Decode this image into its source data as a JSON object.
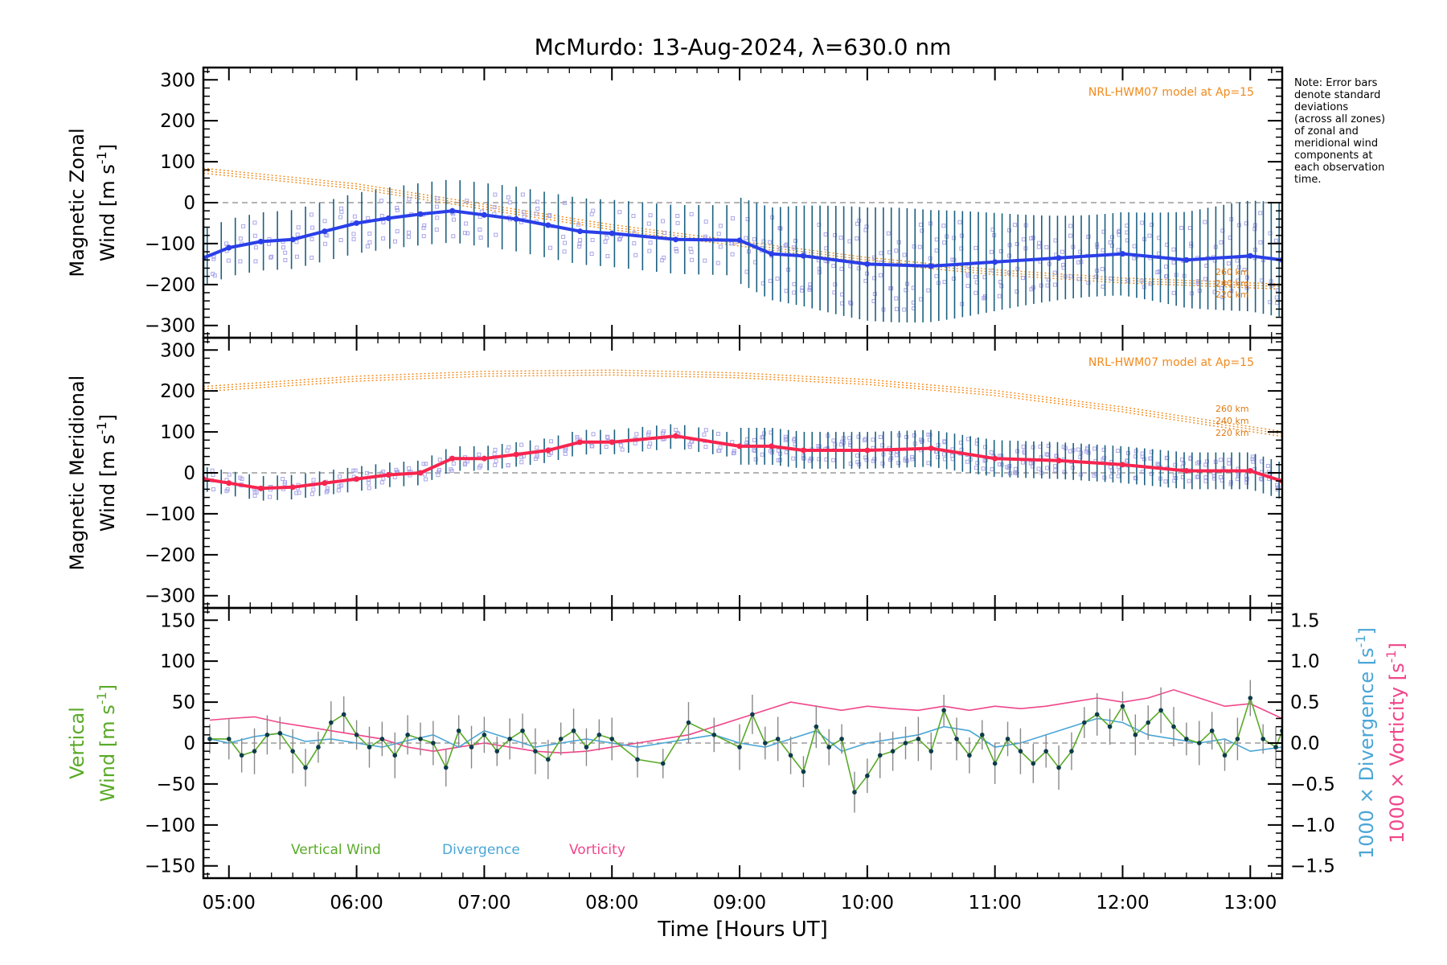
{
  "title": "McMurdo: 13-Aug-2024, λ=630.0 nm",
  "note": [
    "Note: Error bars",
    "denote standard",
    "deviations",
    "(across all zones)",
    "of zonal and",
    "meridional wind",
    "components at",
    "each observation",
    "time."
  ],
  "model_label": "NRL-HWM07 model at Ap=15",
  "altitude_labels": [
    "260 km",
    "240 km",
    "220 km"
  ],
  "xlabel": "Time [Hours UT]",
  "x_ticks": [
    "05:00",
    "06:00",
    "07:00",
    "08:00",
    "09:00",
    "10:00",
    "11:00",
    "12:00",
    "13:00"
  ],
  "colors": {
    "zonal": "#2a3fe8",
    "meridional": "#f7254f",
    "vertical": "#5aaa28",
    "divergence": "#4aa6d6",
    "vorticity": "#f0468a",
    "model": "#f08a1c",
    "error_bar": "#1c6080",
    "zone_points": "#a9a6e8"
  },
  "chart_data": [
    {
      "type": "line",
      "panel": "zonal",
      "ylabel": [
        "Magnetic Zonal",
        "Wind [m s",
        "-1",
        "]"
      ],
      "ylim": [
        -330,
        330
      ],
      "y_ticks": [
        "300",
        "200",
        "100",
        "0",
        "−100",
        "−200",
        "−300"
      ],
      "xlim_hours": [
        4.8,
        13.25
      ],
      "series": [
        {
          "x": [
            4.8,
            5.0,
            5.25,
            5.5,
            5.75,
            6.0,
            6.25,
            6.5,
            6.75,
            7.0,
            7.25,
            7.5,
            7.75,
            8.0,
            8.5,
            9.0,
            9.25,
            9.5,
            10.0,
            10.5,
            11.0,
            11.5,
            12.0,
            12.5,
            13.0,
            13.25
          ],
          "values": [
            -135,
            -110,
            -95,
            -90,
            -70,
            -50,
            -38,
            -28,
            -20,
            -30,
            -40,
            -55,
            -70,
            -75,
            -90,
            -92,
            -125,
            -130,
            -150,
            -155,
            -145,
            -135,
            -125,
            -140,
            -130,
            -140
          ]
        }
      ],
      "model": {
        "x": [
          4.8,
          6.0,
          7.0,
          8.0,
          9.0,
          10.0,
          11.0,
          12.0,
          13.25
        ],
        "values": [
          78,
          40,
          -10,
          -60,
          -100,
          -140,
          -170,
          -190,
          -205
        ]
      }
    },
    {
      "type": "line",
      "panel": "meridional",
      "ylabel": [
        "Magnetic Meridional",
        "Wind [m s",
        "-1",
        "]"
      ],
      "ylim": [
        -330,
        330
      ],
      "y_ticks": [
        "300",
        "200",
        "100",
        "0",
        "−100",
        "−200",
        "−300"
      ],
      "xlim_hours": [
        4.8,
        13.25
      ],
      "series": [
        {
          "x": [
            4.8,
            5.0,
            5.25,
            5.5,
            5.75,
            6.0,
            6.25,
            6.5,
            6.75,
            7.0,
            7.25,
            7.5,
            7.75,
            8.0,
            8.5,
            9.0,
            9.25,
            9.5,
            10.0,
            10.5,
            11.0,
            11.5,
            12.0,
            12.5,
            13.0,
            13.25
          ],
          "values": [
            -15,
            -25,
            -38,
            -35,
            -25,
            -15,
            -5,
            0,
            35,
            35,
            45,
            55,
            75,
            75,
            90,
            65,
            65,
            55,
            55,
            60,
            35,
            30,
            20,
            5,
            5,
            -20
          ]
        }
      ],
      "model": {
        "x": [
          4.8,
          6.0,
          7.0,
          8.0,
          9.0,
          10.0,
          11.0,
          12.0,
          13.25
        ],
        "values": [
          205,
          230,
          242,
          245,
          238,
          222,
          195,
          155,
          95
        ]
      }
    },
    {
      "type": "line",
      "panel": "vertical",
      "ylabel_left": [
        "Vertical",
        "Wind [m s",
        "-1",
        "]"
      ],
      "ylabel_right_divergence": [
        "1000 × Divergence [s",
        "-1",
        "]"
      ],
      "ylabel_right_vorticity": [
        "1000 × Vorticity [s",
        "-1",
        "]"
      ],
      "ylim": [
        -165,
        165
      ],
      "y_ticks": [
        "150",
        "100",
        "50",
        "0",
        "−50",
        "−100",
        "−150"
      ],
      "y2lim": [
        -1.65,
        1.65
      ],
      "y2_ticks": [
        "1.5",
        "1.0",
        "0.5",
        "0.0",
        "−0.5",
        "−1.0",
        "−1.5"
      ],
      "legend": [
        "Vertical Wind",
        "Divergence",
        "Vorticity"
      ],
      "series": [
        {
          "name": "Vertical Wind",
          "x": [
            4.85,
            5.0,
            5.1,
            5.2,
            5.3,
            5.4,
            5.5,
            5.6,
            5.7,
            5.8,
            5.9,
            6.0,
            6.1,
            6.2,
            6.3,
            6.4,
            6.5,
            6.6,
            6.7,
            6.8,
            6.9,
            7.0,
            7.1,
            7.2,
            7.3,
            7.4,
            7.5,
            7.6,
            7.7,
            7.8,
            7.9,
            8.0,
            8.2,
            8.4,
            8.6,
            8.8,
            9.0,
            9.1,
            9.2,
            9.3,
            9.4,
            9.5,
            9.6,
            9.7,
            9.8,
            9.9,
            10.0,
            10.1,
            10.2,
            10.3,
            10.4,
            10.5,
            10.6,
            10.7,
            10.8,
            10.9,
            11.0,
            11.1,
            11.2,
            11.3,
            11.4,
            11.5,
            11.6,
            11.7,
            11.8,
            11.9,
            12.0,
            12.1,
            12.2,
            12.3,
            12.4,
            12.5,
            12.6,
            12.7,
            12.8,
            12.9,
            13.0,
            13.1,
            13.2,
            13.25
          ],
          "values": [
            5,
            5,
            -15,
            -10,
            10,
            12,
            -10,
            -30,
            -5,
            25,
            35,
            10,
            -5,
            5,
            -15,
            10,
            5,
            0,
            -30,
            15,
            -5,
            10,
            -10,
            5,
            15,
            -10,
            -20,
            5,
            15,
            -5,
            10,
            5,
            -20,
            -25,
            25,
            10,
            -5,
            35,
            0,
            5,
            -15,
            -35,
            20,
            -5,
            5,
            -60,
            -40,
            -15,
            -10,
            0,
            5,
            -10,
            40,
            5,
            -15,
            10,
            -25,
            5,
            -10,
            -25,
            -10,
            -30,
            -10,
            25,
            35,
            20,
            45,
            10,
            25,
            40,
            20,
            5,
            0,
            15,
            -15,
            5,
            55,
            5,
            -5,
            15
          ]
        },
        {
          "name": "Divergence",
          "x": [
            4.85,
            5.0,
            5.2,
            5.4,
            5.6,
            5.8,
            6.0,
            6.2,
            6.4,
            6.6,
            6.8,
            7.0,
            7.2,
            7.4,
            7.6,
            7.8,
            8.0,
            8.2,
            8.4,
            8.6,
            8.8,
            9.0,
            9.2,
            9.4,
            9.6,
            9.8,
            10.0,
            10.2,
            10.4,
            10.6,
            10.8,
            11.0,
            11.2,
            11.4,
            11.6,
            11.8,
            12.0,
            12.2,
            12.4,
            12.6,
            12.8,
            13.0,
            13.25
          ],
          "values": [
            0.05,
            0.0,
            0.08,
            0.12,
            0.02,
            0.05,
            0.0,
            -0.05,
            0.03,
            0.1,
            -0.05,
            0.15,
            0.05,
            -0.05,
            0.0,
            0.05,
            0.0,
            -0.05,
            0.0,
            0.05,
            0.1,
            0.0,
            -0.05,
            0.05,
            0.15,
            -0.1,
            0.0,
            0.05,
            0.1,
            0.2,
            0.15,
            -0.05,
            0.0,
            0.1,
            0.2,
            0.3,
            0.25,
            0.1,
            0.05,
            0.0,
            0.05,
            -0.1,
            -0.05
          ]
        },
        {
          "name": "Vorticity",
          "x": [
            4.85,
            5.0,
            5.2,
            5.4,
            5.6,
            5.8,
            6.0,
            6.2,
            6.4,
            6.6,
            6.8,
            7.0,
            7.2,
            7.4,
            7.6,
            7.8,
            8.0,
            8.2,
            8.4,
            8.6,
            8.8,
            9.0,
            9.2,
            9.4,
            9.6,
            9.8,
            10.0,
            10.2,
            10.4,
            10.6,
            10.8,
            11.0,
            11.2,
            11.4,
            11.6,
            11.8,
            12.0,
            12.2,
            12.4,
            12.6,
            12.8,
            13.0,
            13.25
          ],
          "values": [
            0.28,
            0.3,
            0.32,
            0.25,
            0.2,
            0.15,
            0.1,
            0.05,
            -0.05,
            -0.1,
            -0.05,
            0.0,
            -0.05,
            -0.1,
            -0.12,
            -0.1,
            -0.05,
            0.0,
            0.05,
            0.1,
            0.2,
            0.3,
            0.4,
            0.5,
            0.45,
            0.4,
            0.45,
            0.42,
            0.4,
            0.45,
            0.4,
            0.45,
            0.42,
            0.45,
            0.5,
            0.55,
            0.5,
            0.55,
            0.65,
            0.55,
            0.45,
            0.48,
            0.3
          ]
        }
      ]
    }
  ]
}
